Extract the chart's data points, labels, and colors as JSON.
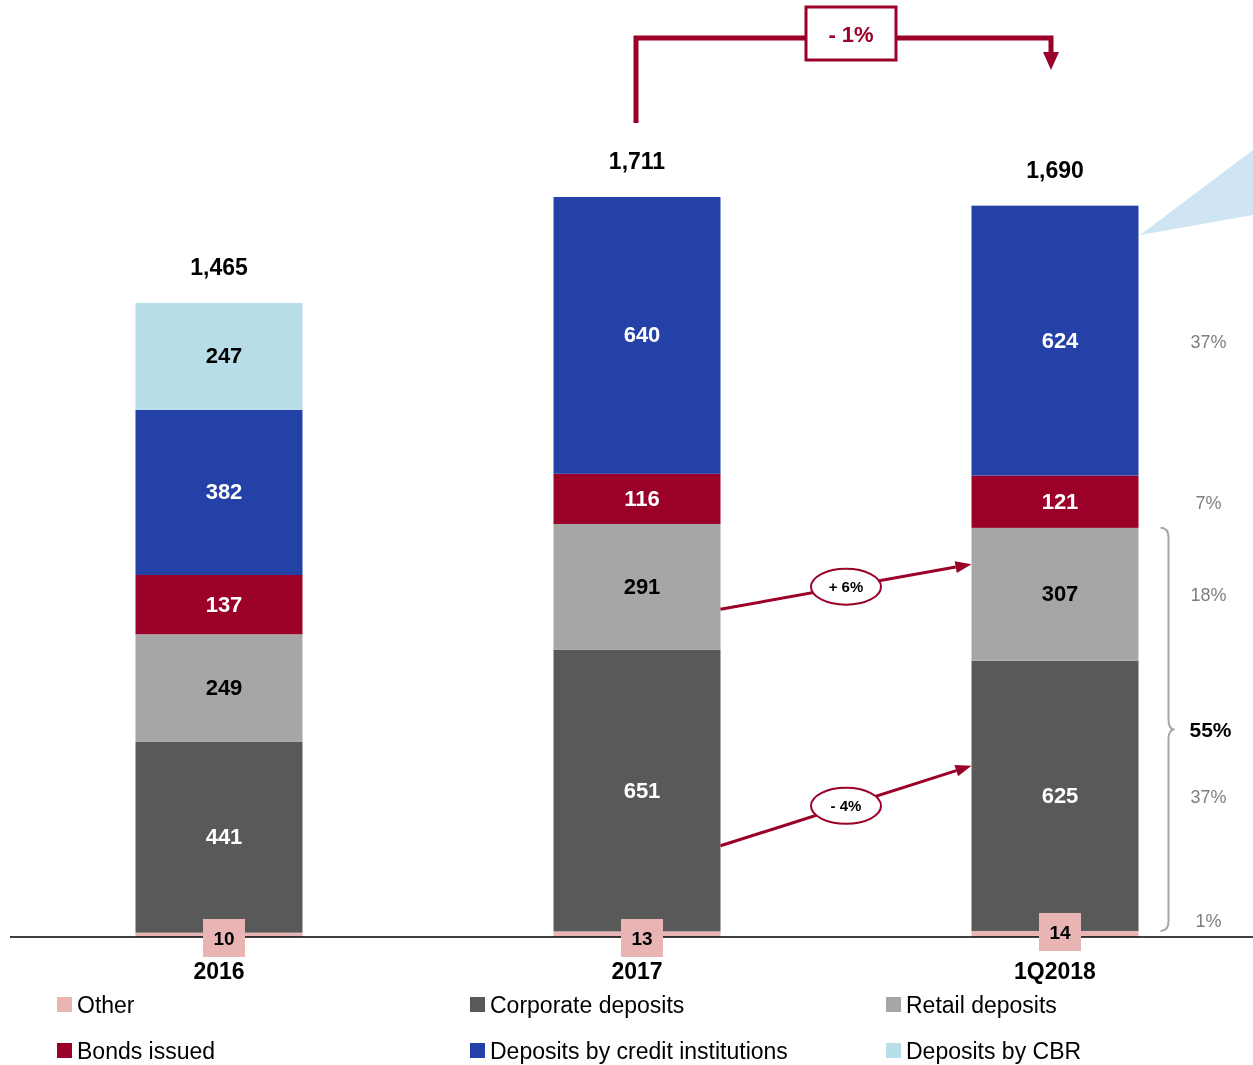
{
  "chart_data": {
    "type": "bar",
    "stacked": true,
    "data_labels": true,
    "legend": "bottom",
    "categories": [
      "2016",
      "2017",
      "1Q2018"
    ],
    "series": [
      {
        "name": "Other",
        "color": "#e8b4b4",
        "values": [
          10,
          13,
          14
        ]
      },
      {
        "name": "Corporate deposits",
        "color": "#595959",
        "values": [
          441,
          651,
          625
        ]
      },
      {
        "name": "Retail deposits",
        "color": "#a6a6a6",
        "values": [
          249,
          291,
          307
        ]
      },
      {
        "name": "Bonds issued",
        "color": "#9b0028",
        "values": [
          137,
          116,
          121
        ]
      },
      {
        "name": "Deposits by credit institutions",
        "color": "#2441a8",
        "values": [
          382,
          640,
          624
        ]
      },
      {
        "name": "Deposits by CBR",
        "color": "#b6dde8",
        "values": [
          247,
          null,
          null
        ]
      }
    ],
    "totals": [
      "1,465",
      "1,711",
      "1,690"
    ],
    "annotations": [
      "- 1%",
      "+ 6%",
      "- 4%",
      "37%",
      "7%",
      "18%",
      "55%",
      "37%",
      "1%"
    ]
  }
}
